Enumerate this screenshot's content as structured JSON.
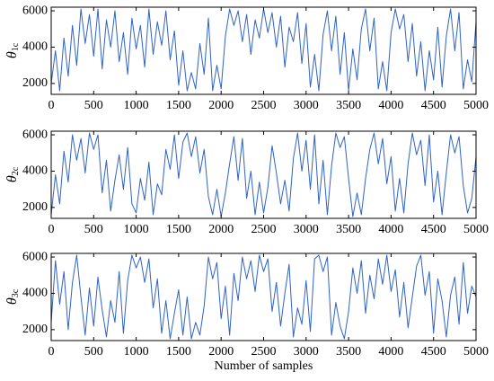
{
  "chart_data": [
    {
      "type": "line",
      "ylabel": {
        "symbol": "θ",
        "subscript": "1c"
      },
      "x": [
        0,
        50,
        100,
        150,
        200,
        250,
        300,
        350,
        400,
        450,
        500,
        550,
        600,
        650,
        700,
        750,
        800,
        850,
        900,
        950,
        1000,
        1050,
        1100,
        1150,
        1200,
        1250,
        1300,
        1350,
        1400,
        1450,
        1500,
        1550,
        1600,
        1650,
        1700,
        1750,
        1800,
        1850,
        1900,
        1950,
        2000,
        2050,
        2100,
        2150,
        2200,
        2250,
        2300,
        2350,
        2400,
        2450,
        2500,
        2550,
        2600,
        2650,
        2700,
        2750,
        2800,
        2850,
        2900,
        2950,
        3000,
        3050,
        3100,
        3150,
        3200,
        3250,
        3300,
        3350,
        3400,
        3450,
        3500,
        3550,
        3600,
        3650,
        3700,
        3750,
        3800,
        3850,
        3900,
        3950,
        4000,
        4050,
        4100,
        4150,
        4200,
        4250,
        4300,
        4350,
        4400,
        4450,
        4500,
        4550,
        4600,
        4650,
        4700,
        4750,
        4800,
        4850,
        4900,
        4950,
        5000
      ],
      "series": [
        {
          "color": "#2f63c4",
          "values": [
            2000,
            3800,
            1600,
            4500,
            2400,
            5200,
            3000,
            6100,
            4200,
            5800,
            3500,
            6100,
            2800,
            5500,
            4000,
            6000,
            3200,
            4800,
            2500,
            5600,
            3900,
            5200,
            2900,
            6100,
            3600,
            5400,
            4100,
            6000,
            3300,
            4900,
            1900,
            3800,
            1600,
            2600,
            1700,
            4200,
            2500,
            5600,
            1600,
            3000,
            1700,
            4600,
            6100,
            5200,
            6000,
            4300,
            5800,
            3600,
            5500,
            4500,
            6100,
            4800,
            5900,
            4000,
            5700,
            2900,
            5100,
            4300,
            5900,
            3100,
            5300,
            1800,
            3600,
            1600,
            4700,
            6000,
            3800,
            5700,
            2500,
            4800,
            1600,
            3900,
            2200,
            5000,
            6100,
            3800,
            5600,
            1700,
            3200,
            1600,
            4800,
            6100,
            5000,
            5800,
            3200,
            5300,
            2400,
            4300,
            1600,
            3800,
            2200,
            5100,
            1800,
            4600,
            6100,
            3800,
            5900,
            1700,
            3300,
            2100,
            5400
          ]
        }
      ],
      "xlim": [
        0,
        5000
      ],
      "xticks": [
        0,
        500,
        1000,
        1500,
        2000,
        2500,
        3000,
        3500,
        4000,
        4500,
        5000
      ],
      "ylim": [
        1400,
        6200
      ],
      "yticks": [
        2000,
        4000,
        6000
      ]
    },
    {
      "type": "line",
      "ylabel": {
        "symbol": "θ",
        "subscript": "2c"
      },
      "x": [
        0,
        50,
        100,
        150,
        200,
        250,
        300,
        350,
        400,
        450,
        500,
        550,
        600,
        650,
        700,
        750,
        800,
        850,
        900,
        950,
        1000,
        1050,
        1100,
        1150,
        1200,
        1250,
        1300,
        1350,
        1400,
        1450,
        1500,
        1550,
        1600,
        1650,
        1700,
        1750,
        1800,
        1850,
        1900,
        1950,
        2000,
        2050,
        2100,
        2150,
        2200,
        2250,
        2300,
        2350,
        2400,
        2450,
        2500,
        2550,
        2600,
        2650,
        2700,
        2750,
        2800,
        2850,
        2900,
        2950,
        3000,
        3050,
        3100,
        3150,
        3200,
        3250,
        3300,
        3350,
        3400,
        3450,
        3500,
        3550,
        3600,
        3650,
        3700,
        3750,
        3800,
        3850,
        3900,
        3950,
        4000,
        4050,
        4100,
        4150,
        4200,
        4250,
        4300,
        4350,
        4400,
        4450,
        4500,
        4550,
        4600,
        4650,
        4700,
        4750,
        4800,
        4850,
        4900,
        4950,
        5000
      ],
      "series": [
        {
          "color": "#2f63c4",
          "values": [
            1600,
            3800,
            2200,
            5100,
            3400,
            6000,
            4600,
            5800,
            3900,
            6100,
            5200,
            6000,
            2800,
            4600,
            1800,
            3500,
            4900,
            3000,
            5300,
            2200,
            1700,
            3600,
            2400,
            4500,
            1600,
            3300,
            2700,
            5200,
            4100,
            6000,
            3600,
            5600,
            6100,
            4800,
            5900,
            3900,
            5200,
            2600,
            1600,
            3000,
            1500,
            2800,
            4400,
            5900,
            3500,
            5800,
            2500,
            4000,
            1600,
            3400,
            1700,
            3100,
            5400,
            3900,
            2200,
            3500,
            1800,
            4700,
            6100,
            4000,
            5700,
            3000,
            6000,
            2200,
            4600,
            1600,
            4300,
            6100,
            5300,
            5900,
            3600,
            1500,
            2800,
            1600,
            3600,
            5200,
            6100,
            4400,
            5800,
            3300,
            4800,
            1800,
            3600,
            1700,
            4400,
            6100,
            4900,
            5700,
            3200,
            6000,
            2300,
            4000,
            1600,
            3900,
            6000,
            5000,
            5900,
            3200,
            1700,
            2500,
            4800
          ]
        }
      ],
      "xlim": [
        0,
        5000
      ],
      "xticks": [
        0,
        500,
        1000,
        1500,
        2000,
        2500,
        3000,
        3500,
        4000,
        4500,
        5000
      ],
      "ylim": [
        1400,
        6200
      ],
      "yticks": [
        2000,
        4000,
        6000
      ]
    },
    {
      "type": "line",
      "ylabel": {
        "symbol": "θ",
        "subscript": "3c"
      },
      "xlabel": "Number of samples",
      "x": [
        0,
        50,
        100,
        150,
        200,
        250,
        300,
        350,
        400,
        450,
        500,
        550,
        600,
        650,
        700,
        750,
        800,
        850,
        900,
        950,
        1000,
        1050,
        1100,
        1150,
        1200,
        1250,
        1300,
        1350,
        1400,
        1450,
        1500,
        1550,
        1600,
        1650,
        1700,
        1750,
        1800,
        1850,
        1900,
        1950,
        2000,
        2050,
        2100,
        2150,
        2200,
        2250,
        2300,
        2350,
        2400,
        2450,
        2500,
        2550,
        2600,
        2650,
        2700,
        2750,
        2800,
        2850,
        2900,
        2950,
        3000,
        3050,
        3100,
        3150,
        3200,
        3250,
        3300,
        3350,
        3400,
        3450,
        3500,
        3550,
        3600,
        3650,
        3700,
        3750,
        3800,
        3850,
        3900,
        3950,
        4000,
        4050,
        4100,
        4150,
        4200,
        4250,
        4300,
        4350,
        4400,
        4450,
        4500,
        4550,
        4600,
        4650,
        4700,
        4750,
        4800,
        4850,
        4900,
        4950,
        5000
      ],
      "series": [
        {
          "color": "#2f63c4",
          "values": [
            2400,
            5800,
            3400,
            5200,
            2000,
            4600,
            6100,
            3800,
            1700,
            4300,
            2200,
            4900,
            3100,
            1600,
            3600,
            2400,
            5200,
            1800,
            4700,
            6100,
            5400,
            6000,
            4600,
            5900,
            3200,
            4800,
            1800,
            3600,
            1500,
            2900,
            4200,
            1700,
            3800,
            1500,
            2400,
            1700,
            3300,
            6000,
            4800,
            5700,
            2600,
            4400,
            1700,
            5100,
            3600,
            6000,
            4800,
            5800,
            4100,
            6100,
            5200,
            5900,
            3000,
            4600,
            2200,
            4000,
            5600,
            1600,
            3200,
            2300,
            4700,
            1900,
            5900,
            6100,
            5200,
            6000,
            1700,
            3500,
            2200,
            1500,
            3000,
            5400,
            4000,
            5800,
            2900,
            5000,
            3700,
            5900,
            4500,
            6100,
            4100,
            5300,
            2700,
            4600,
            2100,
            3800,
            5500,
            6100,
            3900,
            5200,
            1800,
            4800,
            3600,
            1600,
            3900,
            4900,
            2300,
            5700,
            2900,
            4400,
            3800
          ]
        }
      ],
      "xlim": [
        0,
        5000
      ],
      "xticks": [
        0,
        500,
        1000,
        1500,
        2000,
        2500,
        3000,
        3500,
        4000,
        4500,
        5000
      ],
      "ylim": [
        1400,
        6200
      ],
      "yticks": [
        2000,
        4000,
        6000
      ]
    }
  ]
}
